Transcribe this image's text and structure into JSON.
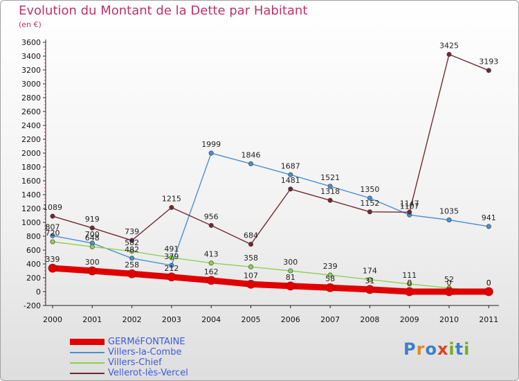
{
  "title": "Evolution du Montant de la Dette par Habitant",
  "subtitle": "(en €)",
  "logo_text": "Proxiti",
  "chart_data": {
    "type": "line",
    "title": "Evolution du Montant de la Dette par Habitant",
    "unit": "(en €)",
    "x": [
      "2000",
      "2001",
      "2002",
      "2003",
      "2004",
      "2005",
      "2006",
      "2007",
      "2008",
      "2009",
      "2010",
      "2011"
    ],
    "ylim": [
      -200,
      3600
    ],
    "yticks": [
      -200,
      0,
      200,
      400,
      600,
      800,
      1000,
      1200,
      1400,
      1600,
      1800,
      2000,
      2200,
      2400,
      2600,
      2800,
      3000,
      3200,
      3400,
      3600
    ],
    "grid": false,
    "legend_position": "bottom-left",
    "series": [
      {
        "name": "GERMéFONTAINE",
        "color": "#e00000",
        "values": [
          339,
          300,
          258,
          212,
          162,
          107,
          81,
          58,
          31,
          0,
          0,
          0
        ]
      },
      {
        "name": "Villers-la-Combe",
        "color": "#4a90d0",
        "values": [
          807,
          700,
          482,
          379,
          1999,
          1846,
          1687,
          1521,
          1350,
          1107,
          1035,
          941
        ]
      },
      {
        "name": "Villers-Chief",
        "color": "#90d050",
        "values": [
          720,
          648,
          582,
          491,
          413,
          358,
          300,
          239,
          174,
          111,
          52,
          0
        ]
      },
      {
        "name": "Vellerot-lès-Vercel",
        "color": "#702830",
        "values": [
          1089,
          919,
          739,
          1215,
          956,
          684,
          1481,
          1318,
          1152,
          1147,
          3425,
          3193
        ]
      }
    ]
  }
}
